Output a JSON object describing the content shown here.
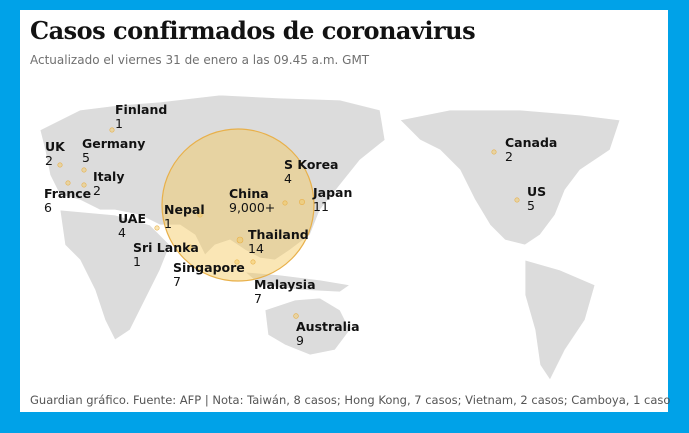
{
  "header": {
    "title": "Casos confirmados de coronavirus",
    "subtitle": "Actualizado el viernes 31 de enero a las 09.45 a.m. GMT"
  },
  "countries": [
    {
      "name": "Finland",
      "cases": 1
    },
    {
      "name": "UK",
      "cases": 2
    },
    {
      "name": "Germany",
      "cases": 5
    },
    {
      "name": "Italy",
      "cases": 2
    },
    {
      "name": "France",
      "cases": 6
    },
    {
      "name": "UAE",
      "cases": 4
    },
    {
      "name": "Nepal",
      "cases": 1
    },
    {
      "name": "Sri Lanka",
      "cases": 1
    },
    {
      "name": "Singapore",
      "cases": 7
    },
    {
      "name": "China",
      "cases": {
        "value": 9000,
        "label": "9,000+"
      }
    },
    {
      "name": "S Korea",
      "cases": 4
    },
    {
      "name": "Japan",
      "cases": 11
    },
    {
      "name": "Thailand",
      "cases": 14
    },
    {
      "name": "Malaysia",
      "cases": 7
    },
    {
      "name": "Australia",
      "cases": 9
    },
    {
      "name": "Canada",
      "cases": 2
    },
    {
      "name": "US",
      "cases": 5
    }
  ],
  "footer": "Guardian gráfico. Fuente: AFP | Nota: Taiwán, 8 casos; Hong Kong, 7 casos; Vietnam, 2 casos; Camboya, 1 caso"
}
